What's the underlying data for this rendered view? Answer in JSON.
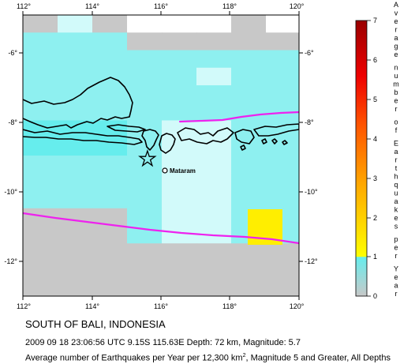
{
  "map": {
    "x_ticks": [
      "112°",
      "114°",
      "116°",
      "118°",
      "120°"
    ],
    "y_ticks": [
      "-6°",
      "-8°",
      "-10°",
      "-12°"
    ],
    "city_label": "Mataram",
    "epicenter_marker": "star-icon",
    "city_marker": "open-circle-icon",
    "colors": {
      "grid_gray": "#c8c8c8",
      "grid_light_cyan": "#d2fafa",
      "grid_cyan": "#8ef0f0",
      "grid_deeper_cyan": "#66eded",
      "trench": "#ee22ee",
      "highlight_cell": "#ffee00",
      "coastline": "#000000"
    }
  },
  "colorbar": {
    "ticks": [
      "7",
      "6",
      "5",
      "4",
      "3",
      "2",
      "1",
      "0"
    ],
    "title_chars": [
      "A",
      "v",
      "e",
      "r",
      "a",
      "g",
      "e",
      "n",
      "u",
      "m",
      "b",
      "e",
      "r",
      "o",
      "f",
      "E",
      "a",
      "r",
      "t",
      "h",
      "q",
      "u",
      "a",
      "k",
      "e",
      "s",
      "p",
      "e",
      "r",
      "Y",
      "e",
      "a",
      "r"
    ],
    "stops": [
      "#c8c8c8",
      "#66eded",
      "#ffff00",
      "#ffaa00",
      "#ff5500",
      "#ee0000",
      "#990000"
    ]
  },
  "caption": {
    "title": "SOUTH OF BALI, INDONESIA",
    "event": "2009 09 18 23:06:56 UTC 9.15S 115.63E Depth: 72 km, Magnitude: 5.7",
    "desc_prefix": "Average number of Earthquakes per Year per 12,300 km",
    "desc_sup": "2",
    "desc_suffix": ", Magnitude 5 and Greater, All Depths"
  }
}
